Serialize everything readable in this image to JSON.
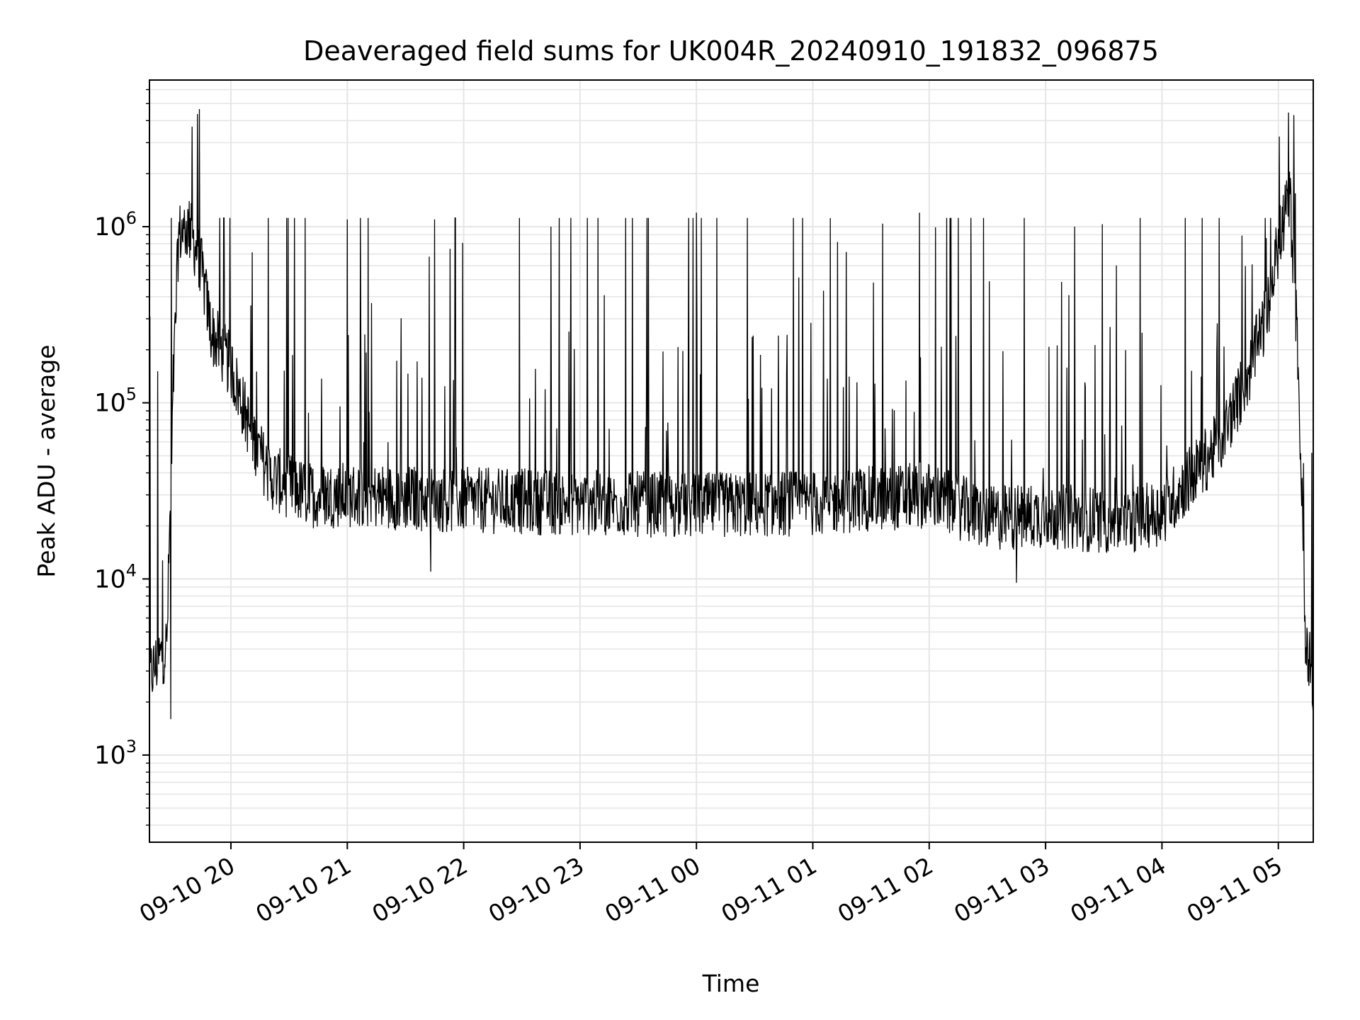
{
  "chart_data": {
    "type": "line",
    "title": "Deaveraged field sums for UK004R_20240910_191832_096875",
    "xlabel": "Time",
    "ylabel": "Peak ADU - average",
    "xlim": [
      "2024-09-10 19:18",
      "2024-09-11 05:18"
    ],
    "ylim": [
      320,
      6800000
    ],
    "yscale": "log",
    "grid": true,
    "x_ticks": [
      "09-10 20",
      "09-10 21",
      "09-10 22",
      "09-10 23",
      "09-11 00",
      "09-11 01",
      "09-11 02",
      "09-11 03",
      "09-11 04",
      "09-11 05"
    ],
    "y_ticks": [
      {
        "value": 1000,
        "base": "10",
        "exp": "3"
      },
      {
        "value": 10000,
        "base": "10",
        "exp": "4"
      },
      {
        "value": 100000,
        "base": "10",
        "exp": "5"
      },
      {
        "value": 1000000,
        "base": "10",
        "exp": "6"
      }
    ],
    "line_color": "#000000",
    "series": [
      {
        "baseline": [
          [
            "2024-09-10 19:18",
            2800
          ],
          [
            "2024-09-10 19:23",
            3500
          ],
          [
            "2024-09-10 19:27",
            4200
          ],
          [
            "2024-09-10 19:30",
            100000
          ],
          [
            "2024-09-10 19:33",
            900000
          ],
          [
            "2024-09-10 19:38",
            1000000
          ],
          [
            "2024-09-10 19:44",
            650000
          ],
          [
            "2024-09-10 19:50",
            250000
          ],
          [
            "2024-09-10 20:00",
            160000
          ],
          [
            "2024-09-10 20:10",
            70000
          ],
          [
            "2024-09-10 20:20",
            38000
          ],
          [
            "2024-09-10 20:40",
            30000
          ],
          [
            "2024-09-10 21:00",
            30000
          ],
          [
            "2024-09-10 22:00",
            28000
          ],
          [
            "2024-09-10 23:00",
            27000
          ],
          [
            "2024-09-11 00:00",
            26000
          ],
          [
            "2024-09-11 01:00",
            27000
          ],
          [
            "2024-09-11 02:00",
            30000
          ],
          [
            "2024-09-11 02:30",
            22000
          ],
          [
            "2024-09-11 03:00",
            23000
          ],
          [
            "2024-09-11 03:40",
            21000
          ],
          [
            "2024-09-11 04:00",
            24000
          ],
          [
            "2024-09-11 04:30",
            60000
          ],
          [
            "2024-09-11 04:45",
            150000
          ],
          [
            "2024-09-11 04:55",
            350000
          ],
          [
            "2024-09-11 05:00",
            800000
          ],
          [
            "2024-09-11 05:06",
            1500000
          ],
          [
            "2024-09-11 05:10",
            200000
          ],
          [
            "2024-09-11 05:14",
            5000
          ],
          [
            "2024-09-11 05:18",
            2500
          ]
        ],
        "peaks": [
          [
            "2024-09-10 19:40",
            3700000
          ],
          [
            "2024-09-10 21:00",
            1100000
          ],
          [
            "2024-09-10 21:45",
            1100000
          ],
          [
            "2024-09-10 22:45",
            1000000
          ],
          [
            "2024-09-11 00:00",
            1200000
          ],
          [
            "2024-09-11 01:55",
            1200000
          ],
          [
            "2024-09-11 03:15",
            1000000
          ],
          [
            "2024-09-11 05:08",
            4300000
          ]
        ],
        "troughs": [
          [
            "2024-09-10 19:29",
            1600
          ],
          [
            "2024-09-10 21:43",
            11000
          ],
          [
            "2024-09-11 02:45",
            9500
          ],
          [
            "2024-09-11 05:18",
            1700
          ]
        ]
      }
    ]
  }
}
